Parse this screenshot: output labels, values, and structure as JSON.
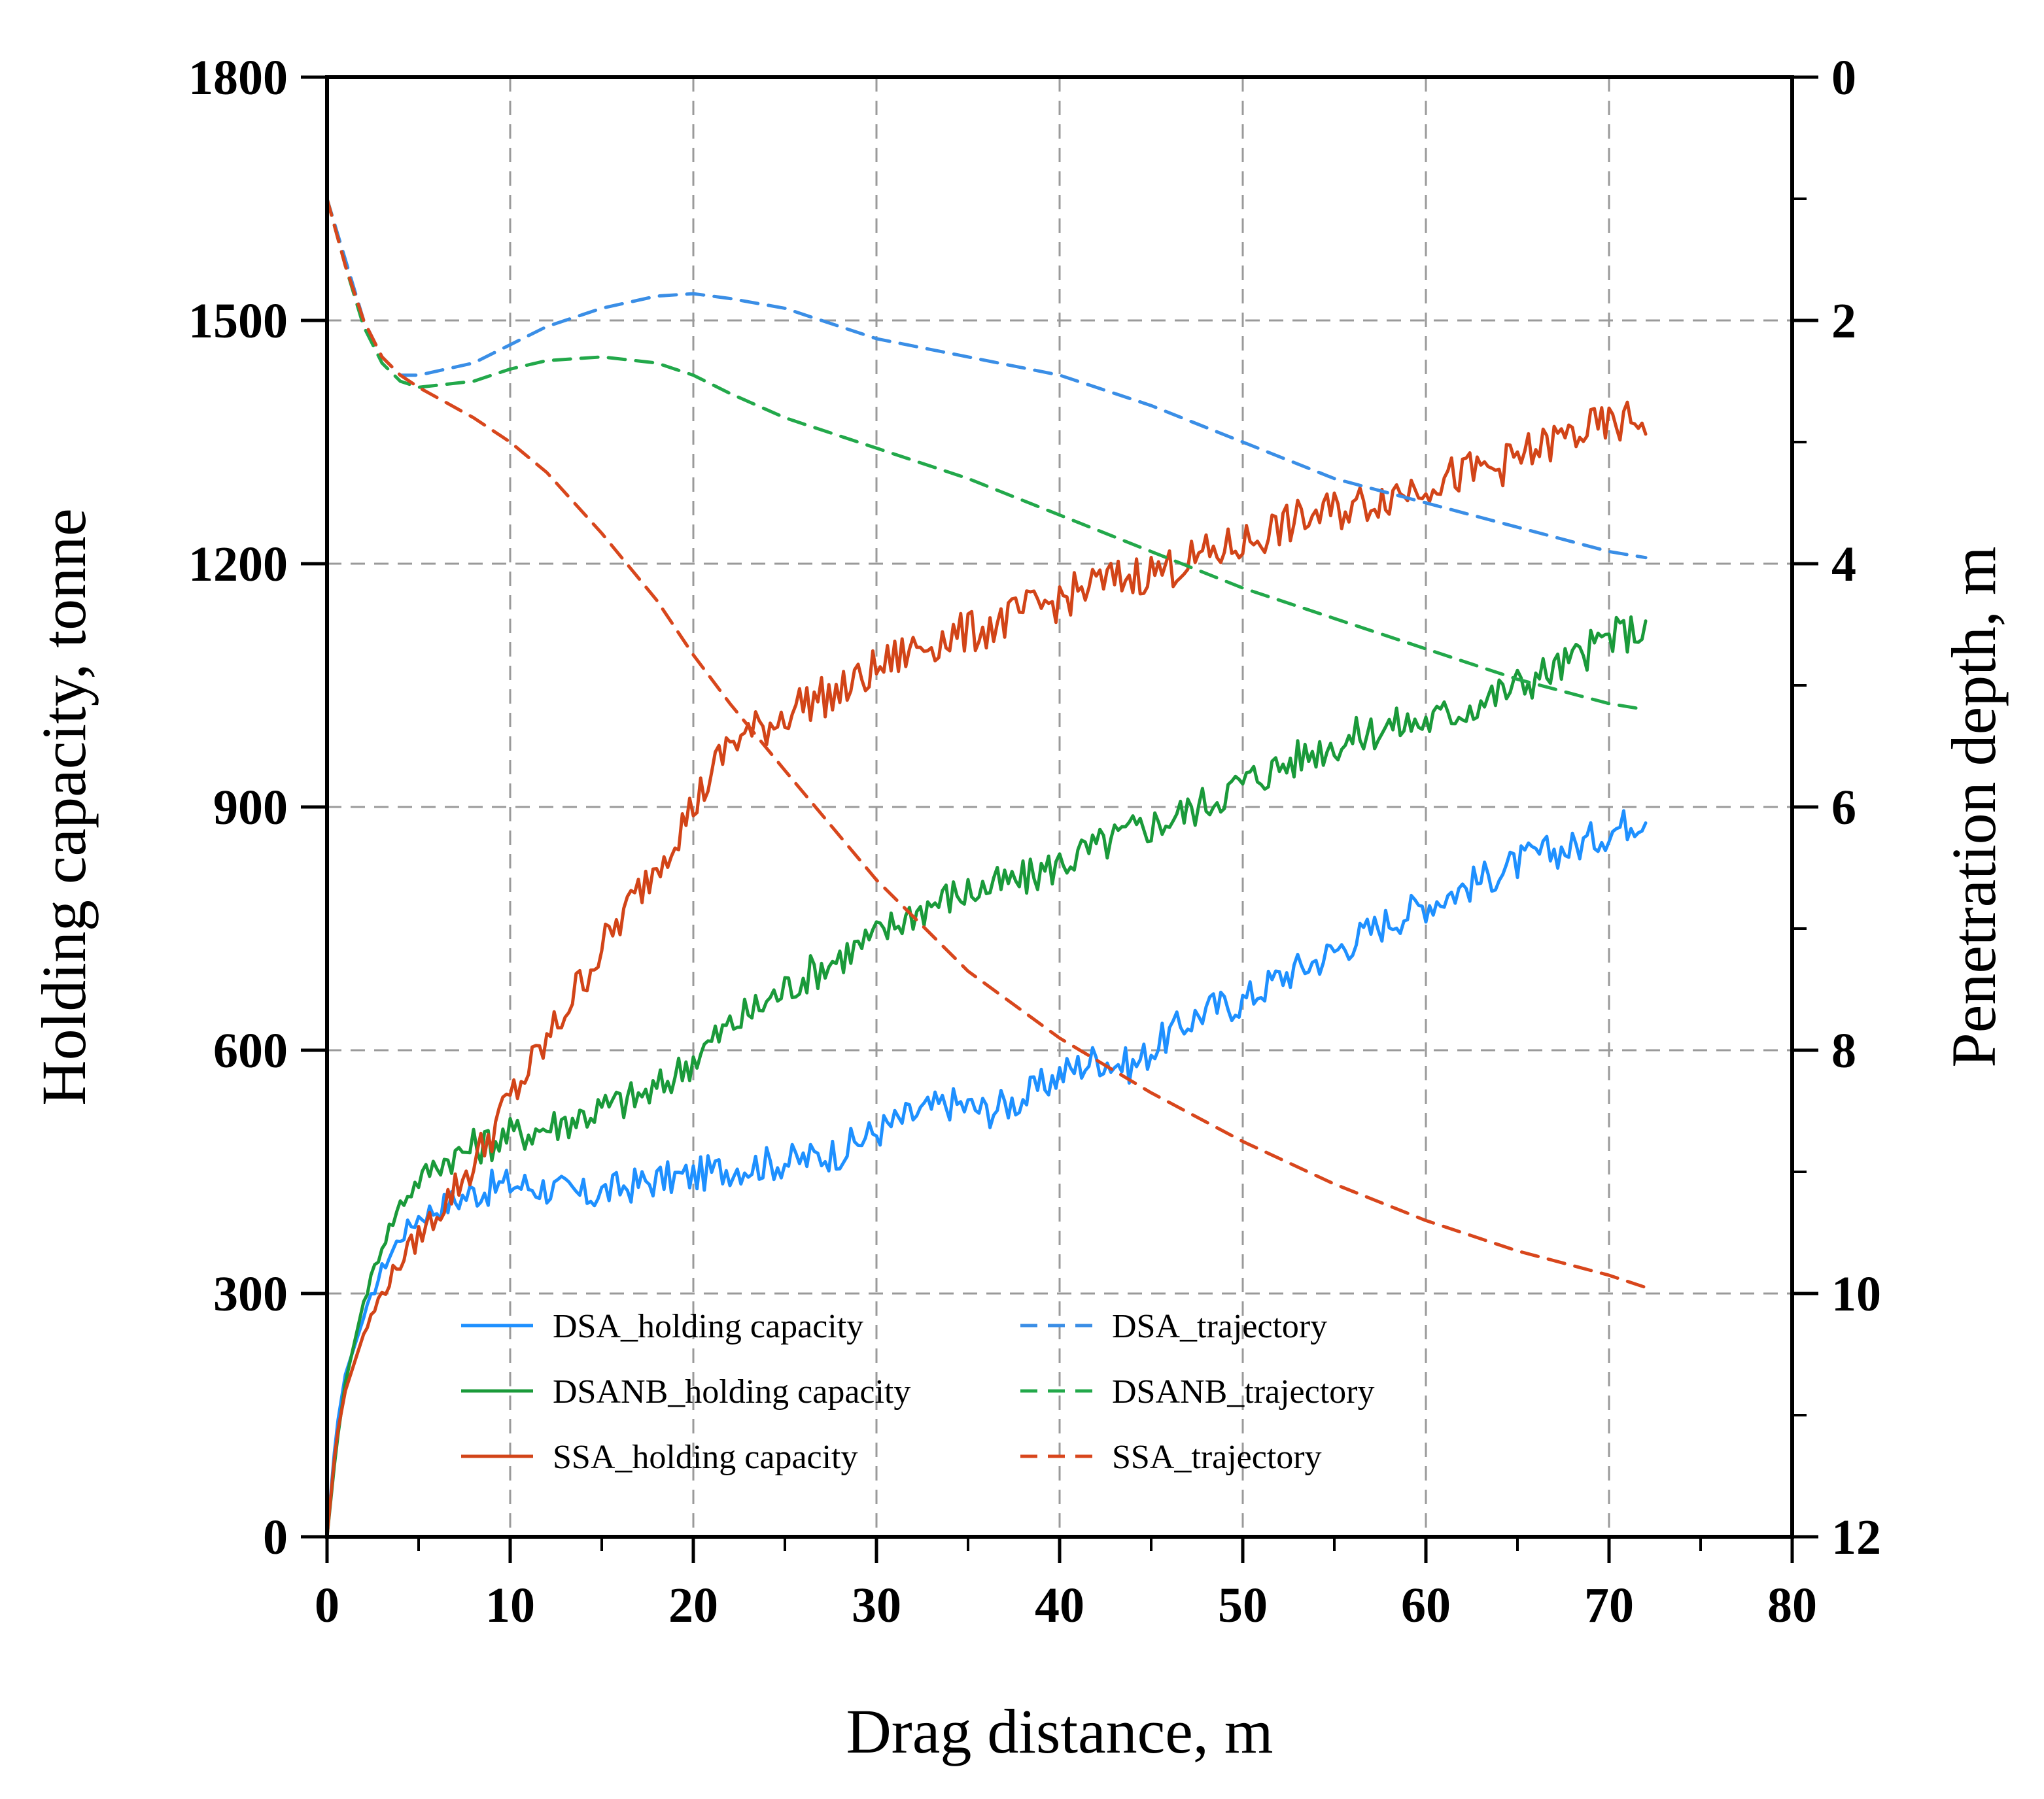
{
  "chart_data": {
    "type": "line",
    "xlabel": "Drag distance, m",
    "ylabel_left": "Holding capacity, tonne",
    "ylabel_right": "Penetration depth, m",
    "xlim": [
      0,
      80
    ],
    "ylim_left": [
      0,
      1800
    ],
    "ylim_right": [
      12,
      0
    ],
    "xticks": [
      0,
      10,
      20,
      30,
      40,
      50,
      60,
      70,
      80
    ],
    "xtick_labels": [
      "0",
      "10",
      "20",
      "30",
      "40",
      "50",
      "60",
      "70",
      "80"
    ],
    "yticks_left": [
      0,
      300,
      600,
      900,
      1200,
      1500,
      1800
    ],
    "ytick_labels_left": [
      "0",
      "300",
      "600",
      "900",
      "1200",
      "1500",
      "1800"
    ],
    "yticks_right": [
      0,
      2,
      4,
      6,
      8,
      10,
      12
    ],
    "ytick_labels_right": [
      "0",
      "2",
      "4",
      "6",
      "8",
      "10",
      "12"
    ],
    "grid": "dashed",
    "legend_position": "bottom-center",
    "series": [
      {
        "name": "DSA_holding capacity",
        "axis": "left",
        "style": "solid",
        "color": "#1e90ff",
        "x": [
          0,
          0.5,
          1,
          2,
          3,
          4,
          5,
          6,
          8,
          10,
          12,
          14,
          16,
          18,
          20,
          22,
          24,
          26,
          28,
          30,
          32,
          34,
          36,
          38,
          40,
          42,
          44,
          46,
          48,
          50,
          52,
          54,
          56,
          58,
          60,
          62,
          64,
          66,
          68,
          70,
          72
        ],
        "y": [
          0,
          130,
          200,
          270,
          330,
          370,
          395,
          405,
          425,
          435,
          430,
          420,
          430,
          440,
          445,
          455,
          460,
          465,
          475,
          500,
          520,
          535,
          525,
          540,
          570,
          590,
          580,
          620,
          650,
          660,
          690,
          710,
          735,
          760,
          780,
          800,
          820,
          840,
          850,
          870,
          890
        ],
        "noise": 22
      },
      {
        "name": "DSANB_holding capacity",
        "axis": "left",
        "style": "solid",
        "color": "#1a9a3a",
        "x": [
          0,
          0.5,
          1,
          2,
          3,
          4,
          5,
          6,
          8,
          10,
          12,
          14,
          16,
          18,
          20,
          22,
          24,
          26,
          28,
          30,
          32,
          34,
          36,
          38,
          40,
          42,
          44,
          46,
          48,
          50,
          52,
          54,
          56,
          58,
          60,
          62,
          64,
          66,
          68,
          70,
          72
        ],
        "y": [
          0,
          110,
          190,
          290,
          360,
          410,
          440,
          460,
          480,
          495,
          505,
          520,
          535,
          550,
          590,
          630,
          660,
          690,
          715,
          740,
          770,
          790,
          800,
          810,
          830,
          850,
          870,
          885,
          905,
          930,
          950,
          970,
          985,
          1000,
          1005,
          1020,
          1040,
          1060,
          1080,
          1110,
          1120
        ],
        "noise": 24
      },
      {
        "name": "SSA_holding capacity",
        "axis": "left",
        "style": "solid",
        "color": "#d24418",
        "x": [
          0,
          0.5,
          1,
          2,
          3,
          4,
          5,
          6,
          8,
          10,
          12,
          14,
          16,
          18,
          20,
          22,
          24,
          26,
          28,
          30,
          32,
          34,
          36,
          38,
          40,
          42,
          44,
          46,
          48,
          50,
          52,
          54,
          56,
          58,
          60,
          62,
          64,
          66,
          68,
          70,
          72
        ],
        "y": [
          0,
          120,
          180,
          250,
          300,
          340,
          370,
          400,
          460,
          540,
          610,
          690,
          760,
          830,
          900,
          980,
          1000,
          1030,
          1040,
          1070,
          1095,
          1110,
          1120,
          1140,
          1155,
          1175,
          1185,
          1195,
          1210,
          1225,
          1245,
          1260,
          1270,
          1285,
          1300,
          1310,
          1320,
          1340,
          1360,
          1370,
          1380
        ],
        "noise": 26
      },
      {
        "name": "DSA_trajectory",
        "axis": "right",
        "style": "dashed",
        "color": "#3a8ee6",
        "x": [
          0,
          1,
          2,
          3,
          4,
          5,
          8,
          10,
          12,
          15,
          18,
          20,
          22,
          25,
          28,
          30,
          35,
          40,
          45,
          50,
          55,
          60,
          65,
          70,
          72
        ],
        "y": [
          1.0,
          1.5,
          2.0,
          2.3,
          2.45,
          2.45,
          2.35,
          2.2,
          2.05,
          1.9,
          1.8,
          1.78,
          1.82,
          1.9,
          2.05,
          2.15,
          2.3,
          2.45,
          2.7,
          3.0,
          3.3,
          3.5,
          3.7,
          3.9,
          3.95
        ]
      },
      {
        "name": "DSANB_trajectory",
        "axis": "right",
        "style": "dashed",
        "color": "#22a84a",
        "x": [
          0,
          1,
          2,
          3,
          4,
          5,
          8,
          10,
          12,
          15,
          18,
          20,
          22,
          25,
          30,
          35,
          40,
          45,
          50,
          55,
          60,
          65,
          70,
          72
        ],
        "y": [
          1.0,
          1.55,
          2.05,
          2.35,
          2.5,
          2.55,
          2.5,
          2.4,
          2.33,
          2.3,
          2.35,
          2.45,
          2.6,
          2.8,
          3.05,
          3.3,
          3.6,
          3.9,
          4.2,
          4.45,
          4.7,
          4.95,
          5.15,
          5.2
        ]
      },
      {
        "name": "SSA_trajectory",
        "axis": "right",
        "style": "dashed",
        "color": "#d8461c",
        "x": [
          0,
          1,
          2,
          3,
          4,
          5,
          8,
          10,
          12,
          15,
          18,
          20,
          22,
          25,
          30,
          35,
          40,
          45,
          50,
          55,
          60,
          65,
          70,
          72
        ],
        "y": [
          1.0,
          1.55,
          2.0,
          2.3,
          2.45,
          2.55,
          2.8,
          3.0,
          3.25,
          3.75,
          4.3,
          4.75,
          5.15,
          5.7,
          6.6,
          7.35,
          7.9,
          8.35,
          8.75,
          9.1,
          9.4,
          9.65,
          9.85,
          9.95
        ]
      }
    ]
  }
}
